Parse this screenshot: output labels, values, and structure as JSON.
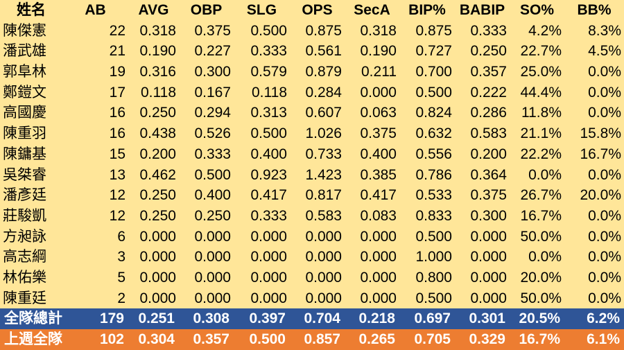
{
  "table": {
    "columns": [
      "姓名",
      "AB",
      "AVG",
      "OBP",
      "SLG",
      "OPS",
      "SecA",
      "BIP%",
      "BABIP",
      "SO%",
      "BB%"
    ],
    "rows": [
      [
        "陳傑憲",
        "22",
        "0.318",
        "0.375",
        "0.500",
        "0.875",
        "0.318",
        "0.875",
        "0.333",
        "4.2%",
        "8.3%"
      ],
      [
        "潘武雄",
        "21",
        "0.190",
        "0.227",
        "0.333",
        "0.561",
        "0.190",
        "0.727",
        "0.250",
        "22.7%",
        "4.5%"
      ],
      [
        "郭阜林",
        "19",
        "0.316",
        "0.300",
        "0.579",
        "0.879",
        "0.211",
        "0.700",
        "0.357",
        "25.0%",
        "0.0%"
      ],
      [
        "鄭鎧文",
        "17",
        "0.118",
        "0.167",
        "0.118",
        "0.284",
        "0.000",
        "0.500",
        "0.222",
        "44.4%",
        "0.0%"
      ],
      [
        "高國慶",
        "16",
        "0.250",
        "0.294",
        "0.313",
        "0.607",
        "0.063",
        "0.824",
        "0.286",
        "11.8%",
        "0.0%"
      ],
      [
        "陳重羽",
        "16",
        "0.438",
        "0.526",
        "0.500",
        "1.026",
        "0.375",
        "0.632",
        "0.583",
        "21.1%",
        "15.8%"
      ],
      [
        "陳鏞基",
        "15",
        "0.200",
        "0.333",
        "0.400",
        "0.733",
        "0.400",
        "0.556",
        "0.200",
        "22.2%",
        "16.7%"
      ],
      [
        "吳桀睿",
        "13",
        "0.462",
        "0.500",
        "0.923",
        "1.423",
        "0.385",
        "0.786",
        "0.364",
        "0.0%",
        "0.0%"
      ],
      [
        "潘彥廷",
        "12",
        "0.250",
        "0.400",
        "0.417",
        "0.817",
        "0.417",
        "0.533",
        "0.375",
        "26.7%",
        "20.0%"
      ],
      [
        "莊駿凱",
        "12",
        "0.250",
        "0.250",
        "0.333",
        "0.583",
        "0.083",
        "0.833",
        "0.300",
        "16.7%",
        "0.0%"
      ],
      [
        "方昶詠",
        "6",
        "0.000",
        "0.000",
        "0.000",
        "0.000",
        "0.000",
        "0.500",
        "0.000",
        "50.0%",
        "0.0%"
      ],
      [
        "高志綱",
        "3",
        "0.000",
        "0.000",
        "0.000",
        "0.000",
        "0.000",
        "1.000",
        "0.000",
        "0.0%",
        "0.0%"
      ],
      [
        "林佑樂",
        "5",
        "0.000",
        "0.000",
        "0.000",
        "0.000",
        "0.000",
        "0.800",
        "0.000",
        "20.0%",
        "0.0%"
      ],
      [
        "陳重廷",
        "2",
        "0.000",
        "0.000",
        "0.000",
        "0.000",
        "0.000",
        "0.500",
        "0.000",
        "50.0%",
        "0.0%"
      ]
    ],
    "summary": [
      [
        "全隊總計",
        "179",
        "0.251",
        "0.308",
        "0.397",
        "0.704",
        "0.218",
        "0.697",
        "0.301",
        "20.5%",
        "6.2%"
      ],
      [
        "上週全隊",
        "102",
        "0.304",
        "0.357",
        "0.500",
        "0.857",
        "0.265",
        "0.705",
        "0.329",
        "16.7%",
        "6.1%"
      ]
    ]
  }
}
